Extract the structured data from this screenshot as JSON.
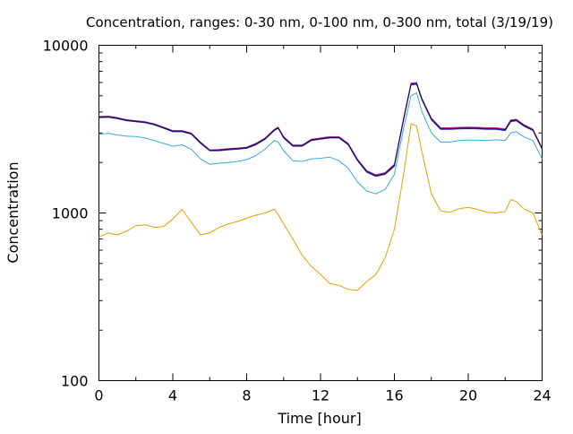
{
  "chart_data": {
    "type": "line",
    "title": "Concentration, ranges: 0-30 nm, 0-100 nm, 0-300 nm, total (3/19/19)",
    "xlabel": "Time [hour]",
    "ylabel": "Concentration",
    "xlim": [
      0,
      24
    ],
    "ylim": [
      100,
      10000
    ],
    "yscale": "log",
    "grid": false,
    "legend": "none",
    "x_ticks": [
      0,
      4,
      8,
      12,
      16,
      20,
      24
    ],
    "x_tick_labels": [
      "0",
      "4",
      "8",
      "12",
      "16",
      "20",
      "24"
    ],
    "y_ticks": [
      100,
      1000,
      10000
    ],
    "y_tick_labels": [
      "100",
      "1000",
      "10000"
    ],
    "x": [
      0,
      0.5,
      1,
      1.5,
      2,
      2.5,
      3,
      3.5,
      4,
      4.5,
      5,
      5.5,
      6,
      6.5,
      7,
      7.5,
      8,
      8.5,
      9,
      9.5,
      9.7,
      10,
      10.5,
      11,
      11.5,
      12,
      12.5,
      13,
      13.5,
      14,
      14.5,
      15,
      15.5,
      16,
      16.5,
      16.9,
      17.2,
      17.5,
      18,
      18.5,
      19,
      19.5,
      20,
      20.5,
      21,
      21.5,
      22,
      22.3,
      22.6,
      23,
      23.5,
      24
    ],
    "series": [
      {
        "color": "#e6a000",
        "values": [
          720,
          760,
          740,
          780,
          840,
          850,
          820,
          830,
          920,
          1050,
          880,
          740,
          760,
          820,
          860,
          890,
          930,
          970,
          1000,
          1050,
          980,
          860,
          700,
          560,
          480,
          430,
          380,
          370,
          350,
          345,
          390,
          430,
          540,
          800,
          1700,
          3400,
          3300,
          2300,
          1300,
          1030,
          1010,
          1060,
          1080,
          1050,
          1010,
          1000,
          1020,
          1200,
          1170,
          1060,
          1000,
          740
        ]
      },
      {
        "color": "#3aa8d8",
        "values": [
          2950,
          2980,
          2920,
          2870,
          2860,
          2800,
          2700,
          2600,
          2500,
          2550,
          2400,
          2100,
          1950,
          1980,
          2000,
          2030,
          2080,
          2200,
          2400,
          2700,
          2650,
          2350,
          2050,
          2030,
          2100,
          2120,
          2150,
          2050,
          1850,
          1530,
          1350,
          1300,
          1380,
          1700,
          3200,
          5000,
          5200,
          4000,
          3000,
          2650,
          2650,
          2700,
          2720,
          2720,
          2700,
          2730,
          2700,
          3000,
          3050,
          2850,
          2700,
          2100
        ]
      },
      {
        "color": "#2222cc",
        "values": [
          3700,
          3720,
          3650,
          3550,
          3500,
          3450,
          3350,
          3200,
          3050,
          3050,
          2950,
          2600,
          2350,
          2350,
          2380,
          2400,
          2430,
          2550,
          2750,
          3100,
          3200,
          2800,
          2500,
          2500,
          2700,
          2750,
          2800,
          2800,
          2550,
          2050,
          1750,
          1650,
          1700,
          1900,
          3600,
          5800,
          5850,
          4700,
          3600,
          3150,
          3150,
          3170,
          3180,
          3170,
          3150,
          3150,
          3100,
          3500,
          3550,
          3300,
          3100,
          2400
        ]
      },
      {
        "color": "#cc1f8a",
        "values": [
          3760,
          3780,
          3700,
          3600,
          3550,
          3500,
          3400,
          3250,
          3100,
          3100,
          3000,
          2650,
          2380,
          2390,
          2420,
          2440,
          2470,
          2600,
          2800,
          3150,
          3250,
          2850,
          2540,
          2540,
          2750,
          2800,
          2850,
          2850,
          2600,
          2090,
          1790,
          1690,
          1740,
          1950,
          3680,
          5950,
          6000,
          4800,
          3680,
          3220,
          3220,
          3240,
          3250,
          3240,
          3220,
          3220,
          3170,
          3580,
          3620,
          3370,
          3160,
          2440
        ]
      },
      {
        "color": "#101040",
        "values": [
          3730,
          3750,
          3675,
          3575,
          3525,
          3475,
          3375,
          3225,
          3075,
          3075,
          2975,
          2625,
          2365,
          2370,
          2400,
          2420,
          2450,
          2575,
          2775,
          3125,
          3225,
          2825,
          2520,
          2520,
          2725,
          2775,
          2825,
          2825,
          2575,
          2070,
          1770,
          1670,
          1720,
          1925,
          3640,
          5875,
          5925,
          4750,
          3640,
          3185,
          3185,
          3205,
          3215,
          3205,
          3185,
          3185,
          3135,
          3540,
          3585,
          3335,
          3130,
          2420
        ]
      }
    ]
  }
}
